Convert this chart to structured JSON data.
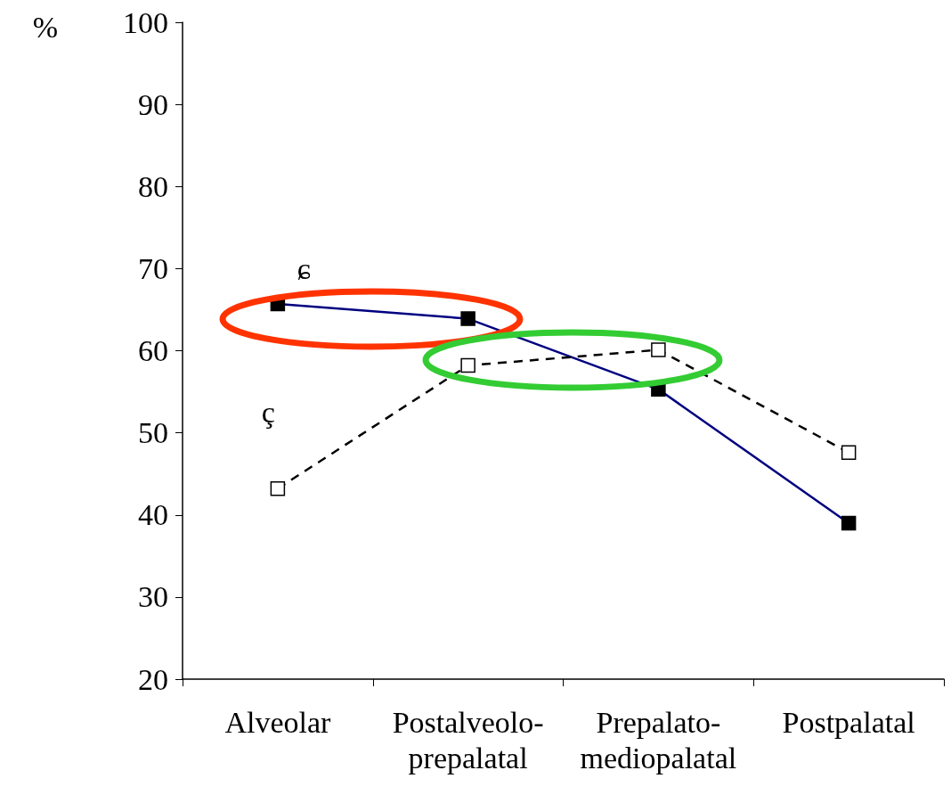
{
  "chart_data": {
    "type": "line",
    "ylabel": "%",
    "categories": [
      "Alveolar",
      "Postalveolo-prepalatal",
      "Prepalato-mediopalatal",
      "Postpalatal"
    ],
    "series": [
      {
        "name": "ɕ",
        "color": "#000080",
        "values": [
          65.7,
          63.9,
          55.3,
          39.0
        ],
        "line_style": "solid"
      },
      {
        "name": "ç",
        "color": "#000000",
        "values": [
          43.2,
          58.2,
          60.1,
          47.6
        ],
        "line_style": "dashed"
      }
    ],
    "ylim": [
      20,
      100
    ],
    "yticks": [
      20,
      30,
      40,
      50,
      60,
      70,
      80,
      90,
      100
    ],
    "grid": false,
    "legend": false,
    "marker": "square"
  }
}
